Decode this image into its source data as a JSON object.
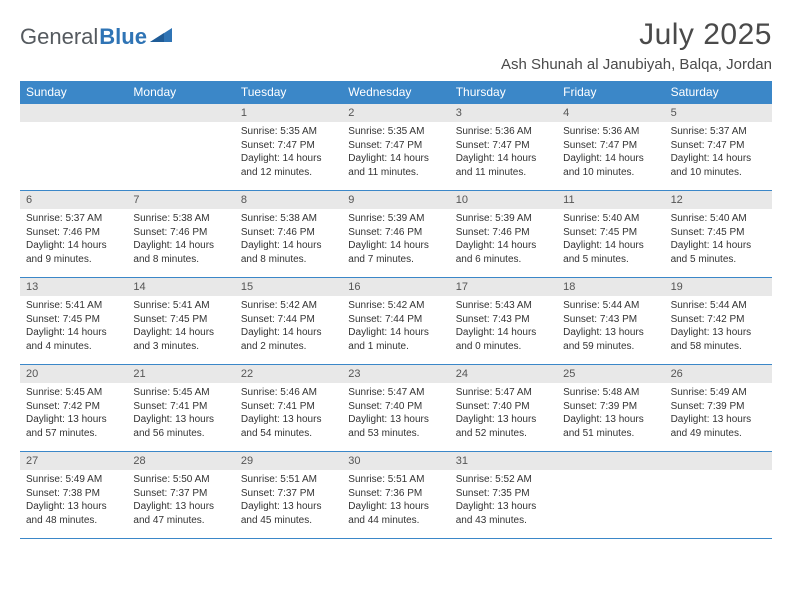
{
  "logo": {
    "part1": "General",
    "part2": "Blue"
  },
  "title": "July 2025",
  "location": "Ash Shunah al Janubiyah, Balqa, Jordan",
  "colors": {
    "header_bg": "#3b87c8",
    "header_text": "#ffffff",
    "daynum_bg": "#e8e8e8",
    "week_border": "#3b87c8",
    "logo_gray": "#555a5f",
    "logo_blue": "#2f74b5"
  },
  "weekdays": [
    "Sunday",
    "Monday",
    "Tuesday",
    "Wednesday",
    "Thursday",
    "Friday",
    "Saturday"
  ],
  "first_weekday_index": 2,
  "days": [
    {
      "n": 1,
      "sunrise": "5:35 AM",
      "sunset": "7:47 PM",
      "daylight": "14 hours and 12 minutes."
    },
    {
      "n": 2,
      "sunrise": "5:35 AM",
      "sunset": "7:47 PM",
      "daylight": "14 hours and 11 minutes."
    },
    {
      "n": 3,
      "sunrise": "5:36 AM",
      "sunset": "7:47 PM",
      "daylight": "14 hours and 11 minutes."
    },
    {
      "n": 4,
      "sunrise": "5:36 AM",
      "sunset": "7:47 PM",
      "daylight": "14 hours and 10 minutes."
    },
    {
      "n": 5,
      "sunrise": "5:37 AM",
      "sunset": "7:47 PM",
      "daylight": "14 hours and 10 minutes."
    },
    {
      "n": 6,
      "sunrise": "5:37 AM",
      "sunset": "7:46 PM",
      "daylight": "14 hours and 9 minutes."
    },
    {
      "n": 7,
      "sunrise": "5:38 AM",
      "sunset": "7:46 PM",
      "daylight": "14 hours and 8 minutes."
    },
    {
      "n": 8,
      "sunrise": "5:38 AM",
      "sunset": "7:46 PM",
      "daylight": "14 hours and 8 minutes."
    },
    {
      "n": 9,
      "sunrise": "5:39 AM",
      "sunset": "7:46 PM",
      "daylight": "14 hours and 7 minutes."
    },
    {
      "n": 10,
      "sunrise": "5:39 AM",
      "sunset": "7:46 PM",
      "daylight": "14 hours and 6 minutes."
    },
    {
      "n": 11,
      "sunrise": "5:40 AM",
      "sunset": "7:45 PM",
      "daylight": "14 hours and 5 minutes."
    },
    {
      "n": 12,
      "sunrise": "5:40 AM",
      "sunset": "7:45 PM",
      "daylight": "14 hours and 5 minutes."
    },
    {
      "n": 13,
      "sunrise": "5:41 AM",
      "sunset": "7:45 PM",
      "daylight": "14 hours and 4 minutes."
    },
    {
      "n": 14,
      "sunrise": "5:41 AM",
      "sunset": "7:45 PM",
      "daylight": "14 hours and 3 minutes."
    },
    {
      "n": 15,
      "sunrise": "5:42 AM",
      "sunset": "7:44 PM",
      "daylight": "14 hours and 2 minutes."
    },
    {
      "n": 16,
      "sunrise": "5:42 AM",
      "sunset": "7:44 PM",
      "daylight": "14 hours and 1 minute."
    },
    {
      "n": 17,
      "sunrise": "5:43 AM",
      "sunset": "7:43 PM",
      "daylight": "14 hours and 0 minutes."
    },
    {
      "n": 18,
      "sunrise": "5:44 AM",
      "sunset": "7:43 PM",
      "daylight": "13 hours and 59 minutes."
    },
    {
      "n": 19,
      "sunrise": "5:44 AM",
      "sunset": "7:42 PM",
      "daylight": "13 hours and 58 minutes."
    },
    {
      "n": 20,
      "sunrise": "5:45 AM",
      "sunset": "7:42 PM",
      "daylight": "13 hours and 57 minutes."
    },
    {
      "n": 21,
      "sunrise": "5:45 AM",
      "sunset": "7:41 PM",
      "daylight": "13 hours and 56 minutes."
    },
    {
      "n": 22,
      "sunrise": "5:46 AM",
      "sunset": "7:41 PM",
      "daylight": "13 hours and 54 minutes."
    },
    {
      "n": 23,
      "sunrise": "5:47 AM",
      "sunset": "7:40 PM",
      "daylight": "13 hours and 53 minutes."
    },
    {
      "n": 24,
      "sunrise": "5:47 AM",
      "sunset": "7:40 PM",
      "daylight": "13 hours and 52 minutes."
    },
    {
      "n": 25,
      "sunrise": "5:48 AM",
      "sunset": "7:39 PM",
      "daylight": "13 hours and 51 minutes."
    },
    {
      "n": 26,
      "sunrise": "5:49 AM",
      "sunset": "7:39 PM",
      "daylight": "13 hours and 49 minutes."
    },
    {
      "n": 27,
      "sunrise": "5:49 AM",
      "sunset": "7:38 PM",
      "daylight": "13 hours and 48 minutes."
    },
    {
      "n": 28,
      "sunrise": "5:50 AM",
      "sunset": "7:37 PM",
      "daylight": "13 hours and 47 minutes."
    },
    {
      "n": 29,
      "sunrise": "5:51 AM",
      "sunset": "7:37 PM",
      "daylight": "13 hours and 45 minutes."
    },
    {
      "n": 30,
      "sunrise": "5:51 AM",
      "sunset": "7:36 PM",
      "daylight": "13 hours and 44 minutes."
    },
    {
      "n": 31,
      "sunrise": "5:52 AM",
      "sunset": "7:35 PM",
      "daylight": "13 hours and 43 minutes."
    }
  ],
  "labels": {
    "sunrise": "Sunrise:",
    "sunset": "Sunset:",
    "daylight": "Daylight:"
  }
}
